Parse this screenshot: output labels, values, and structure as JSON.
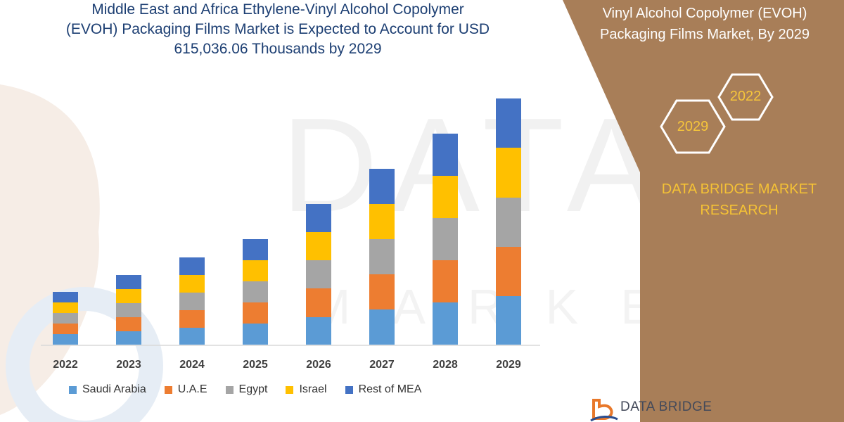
{
  "headline": {
    "line1": "Middle East and Africa Ethylene-Vinyl Alcohol Copolymer",
    "line2": "(EVOH) Packaging Films Market is Expected to Account for USD",
    "line3": "615,036.06 Thousands by 2029"
  },
  "panel": {
    "title_line1": "Vinyl Alcohol Copolymer (EVOH)",
    "title_line2": "Packaging Films Market, By 2029",
    "hex_year_a": "2022",
    "hex_year_b": "2029",
    "brand_line1": "DATA BRIDGE MARKET",
    "brand_line2": "RESEARCH",
    "panel_color": "#a87e58",
    "accent_color": "#f6c53b"
  },
  "logo": {
    "text": "DATA BRIDGE"
  },
  "chart_data": {
    "type": "bar",
    "stacked": true,
    "categories": [
      "2022",
      "2023",
      "2024",
      "2025",
      "2026",
      "2027",
      "2028",
      "2029"
    ],
    "series": [
      {
        "name": "Saudi Arabia",
        "color": "#5b9bd5",
        "values": [
          15,
          19,
          24,
          30,
          39,
          50,
          60,
          69
        ]
      },
      {
        "name": "U.A.E",
        "color": "#ed7d31",
        "values": [
          15,
          20,
          25,
          30,
          41,
          50,
          60,
          70
        ]
      },
      {
        "name": "Egypt",
        "color": "#a5a5a5",
        "values": [
          15,
          20,
          25,
          30,
          40,
          50,
          60,
          70
        ]
      },
      {
        "name": "Israel",
        "color": "#ffc000",
        "values": [
          15,
          20,
          25,
          30,
          40,
          50,
          60,
          71
        ]
      },
      {
        "name": "Rest of MEA",
        "color": "#4472c4",
        "values": [
          15,
          20,
          25,
          30,
          40,
          50,
          60,
          70
        ]
      }
    ],
    "ylim": [
      0,
      350
    ],
    "grid": false,
    "legend_position": "bottom"
  }
}
